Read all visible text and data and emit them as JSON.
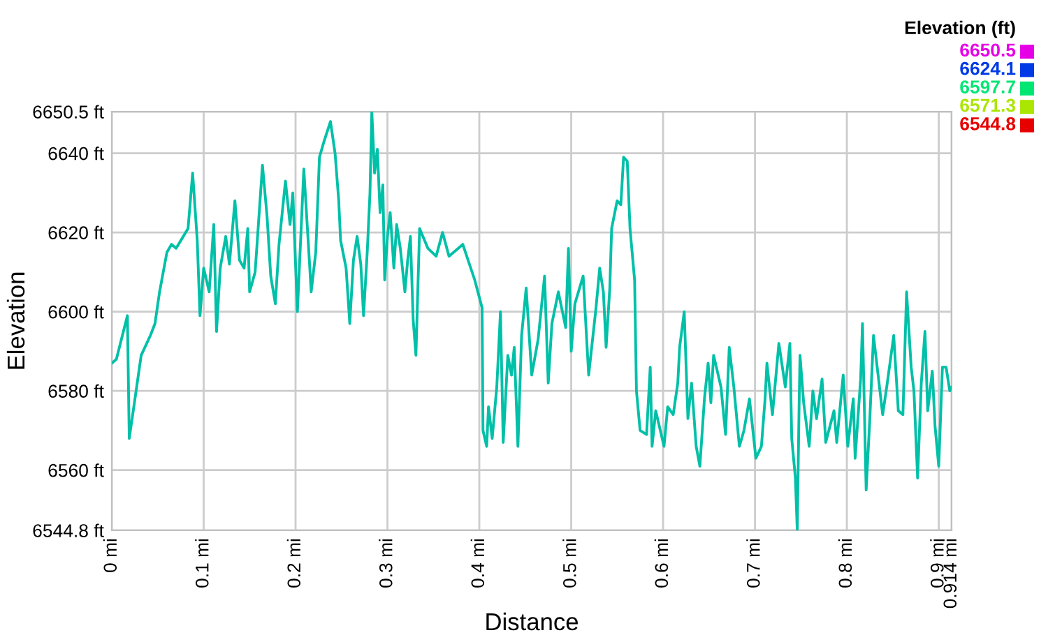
{
  "chart_data": {
    "type": "line",
    "xlabel": "Distance",
    "ylabel": "Elevation",
    "clabel": "Elevation (ft)",
    "xlim": [
      0,
      0.914
    ],
    "ylim": [
      6544.8,
      6650.5
    ],
    "xticks": [
      {
        "value": 0,
        "label": "0 mi"
      },
      {
        "value": 0.1,
        "label": "0.1 mi"
      },
      {
        "value": 0.2,
        "label": "0.2 mi"
      },
      {
        "value": 0.3,
        "label": "0.3 mi"
      },
      {
        "value": 0.4,
        "label": "0.4 mi"
      },
      {
        "value": 0.5,
        "label": "0.5 mi"
      },
      {
        "value": 0.6,
        "label": "0.6 mi"
      },
      {
        "value": 0.7,
        "label": "0.7 mi"
      },
      {
        "value": 0.8,
        "label": "0.8 mi"
      },
      {
        "value": 0.9,
        "label": "0.9 mi"
      },
      {
        "value": 0.914,
        "label": "0.914 mi"
      }
    ],
    "yticks": [
      {
        "value": 6544.8,
        "label": "6544.8 ft"
      },
      {
        "value": 6560,
        "label": "6560 ft"
      },
      {
        "value": 6580,
        "label": "6580 ft"
      },
      {
        "value": 6600,
        "label": "6600 ft"
      },
      {
        "value": 6620,
        "label": "6620 ft"
      },
      {
        "value": 6640,
        "label": "6640 ft"
      },
      {
        "value": 6650.5,
        "label": "6650.5 ft"
      }
    ],
    "grid": true,
    "clim": [
      6544.8,
      6650.5
    ],
    "cticks": [
      6544.8,
      6571.3,
      6597.7,
      6624.1,
      6650.5
    ],
    "x": [
      0.0,
      0.005,
      0.017,
      0.019,
      0.024,
      0.032,
      0.042,
      0.047,
      0.052,
      0.06,
      0.065,
      0.07,
      0.083,
      0.088,
      0.093,
      0.096,
      0.1,
      0.106,
      0.111,
      0.114,
      0.118,
      0.124,
      0.128,
      0.134,
      0.139,
      0.144,
      0.148,
      0.15,
      0.156,
      0.164,
      0.169,
      0.173,
      0.178,
      0.182,
      0.189,
      0.194,
      0.197,
      0.202,
      0.209,
      0.215,
      0.217,
      0.222,
      0.226,
      0.231,
      0.238,
      0.243,
      0.247,
      0.249,
      0.255,
      0.259,
      0.263,
      0.267,
      0.271,
      0.274,
      0.278,
      0.281,
      0.283,
      0.286,
      0.289,
      0.292,
      0.295,
      0.297,
      0.3,
      0.303,
      0.307,
      0.31,
      0.314,
      0.319,
      0.322,
      0.325,
      0.328,
      0.331,
      0.335,
      0.344,
      0.353,
      0.36,
      0.367,
      0.382,
      0.395,
      0.403,
      0.404,
      0.408,
      0.41,
      0.414,
      0.419,
      0.423,
      0.426,
      0.431,
      0.435,
      0.438,
      0.442,
      0.446,
      0.451,
      0.457,
      0.464,
      0.471,
      0.475,
      0.479,
      0.486,
      0.494,
      0.497,
      0.5,
      0.504,
      0.513,
      0.519,
      0.527,
      0.531,
      0.535,
      0.538,
      0.542,
      0.544,
      0.55,
      0.554,
      0.557,
      0.561,
      0.564,
      0.569,
      0.571,
      0.575,
      0.582,
      0.586,
      0.588,
      0.592,
      0.601,
      0.605,
      0.611,
      0.616,
      0.618,
      0.623,
      0.627,
      0.631,
      0.636,
      0.64,
      0.645,
      0.649,
      0.652,
      0.655,
      0.663,
      0.668,
      0.672,
      0.677,
      0.683,
      0.688,
      0.694,
      0.701,
      0.707,
      0.711,
      0.713,
      0.719,
      0.726,
      0.733,
      0.738,
      0.74,
      0.744,
      0.746,
      0.748,
      0.749,
      0.753,
      0.759,
      0.763,
      0.767,
      0.773,
      0.777,
      0.786,
      0.789,
      0.796,
      0.801,
      0.807,
      0.809,
      0.815,
      0.817,
      0.821,
      0.825,
      0.829,
      0.834,
      0.839,
      0.844,
      0.851,
      0.856,
      0.861,
      0.865,
      0.87,
      0.873,
      0.877,
      0.881,
      0.885,
      0.888,
      0.893,
      0.896,
      0.9,
      0.904,
      0.908,
      0.912,
      0.914
    ],
    "series": [
      {
        "color": "#00c0a8",
        "values": [
          6587,
          6588,
          6599,
          6568,
          6576,
          6589,
          6594,
          6597,
          6605,
          6615,
          6617,
          6616,
          6621,
          6635,
          6618,
          6599,
          6611,
          6605,
          6622,
          6595,
          6611,
          6619,
          6612,
          6628,
          6613,
          6611,
          6621,
          6605,
          6610,
          6637,
          6624,
          6609,
          6602,
          6617,
          6633,
          6622,
          6630,
          6600,
          6636,
          6613,
          6605,
          6615,
          6639,
          6643,
          6648,
          6640,
          6628,
          6618,
          6611,
          6597,
          6613,
          6619,
          6612,
          6599,
          6615,
          6630,
          6650.5,
          6635,
          6641,
          6625,
          6632,
          6608,
          6619,
          6625,
          6611,
          6622,
          6616,
          6605,
          6613,
          6619,
          6598,
          6589,
          6621,
          6616,
          6614,
          6620,
          6614,
          6617,
          6608,
          6601,
          6570,
          6566,
          6576,
          6568,
          6581,
          6600,
          6567,
          6589,
          6584,
          6591,
          6566,
          6594,
          6606,
          6584,
          6593,
          6609,
          6582,
          6597,
          6605,
          6596,
          6616,
          6590,
          6602,
          6609,
          6584,
          6601,
          6611,
          6605,
          6591,
          6606,
          6621,
          6628,
          6627,
          6639,
          6638,
          6621,
          6608,
          6580,
          6570,
          6569,
          6586,
          6566,
          6575,
          6566,
          6576,
          6574,
          6582,
          6591,
          6600,
          6573,
          6582,
          6566,
          6561,
          6578,
          6587,
          6577,
          6589,
          6581,
          6569,
          6591,
          6581,
          6566,
          6570,
          6578,
          6563,
          6566,
          6578,
          6587,
          6574,
          6592,
          6581,
          6592,
          6568,
          6558,
          6544.8,
          6576,
          6589,
          6577,
          6566,
          6580,
          6573,
          6583,
          6567,
          6575,
          6567,
          6584,
          6566,
          6578,
          6563,
          6583,
          6597,
          6555,
          6573,
          6594,
          6584,
          6574,
          6582,
          6594,
          6575,
          6574,
          6605,
          6586,
          6580,
          6558,
          6582,
          6595,
          6575,
          6585,
          6571,
          6561,
          6586,
          6586,
          6580,
          6581
        ]
      }
    ]
  }
}
